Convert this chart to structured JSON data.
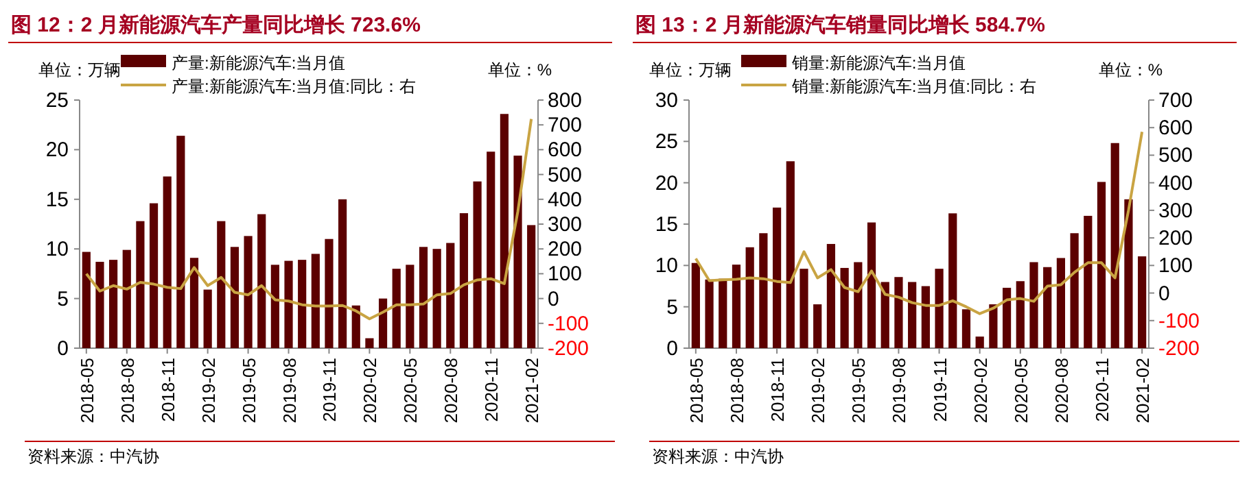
{
  "chart_data": [
    {
      "type": "bar",
      "title": "图 12：2 月新能源汽车产量同比增长 723.6%",
      "ylabel": "单位：万辆",
      "y2label": "单位：%",
      "legend": "top",
      "annotations": [
        "资料来源：中汽协"
      ],
      "categories": [
        "2018-05",
        null,
        null,
        "2018-08",
        null,
        null,
        "2018-11",
        null,
        null,
        "2019-02",
        null,
        null,
        "2019-05",
        null,
        null,
        "2019-08",
        null,
        null,
        "2019-11",
        null,
        null,
        "2020-02",
        null,
        null,
        "2020-05",
        null,
        null,
        "2020-08",
        null,
        null,
        "2020-11",
        null,
        null,
        "2021-02"
      ],
      "ylim": [
        0,
        25
      ],
      "yticks": [
        0,
        5,
        10,
        15,
        20,
        25
      ],
      "y2lim": [
        -200,
        800
      ],
      "y2ticks": [
        -200,
        -100,
        0,
        100,
        200,
        300,
        400,
        500,
        600,
        700,
        800
      ],
      "series": [
        {
          "name": "产量:新能源汽车:当月值",
          "color": "#5c0000",
          "values": [
            9.7,
            8.7,
            8.9,
            9.9,
            12.8,
            14.6,
            17.3,
            21.4,
            9.1,
            5.9,
            12.8,
            10.2,
            11.3,
            13.5,
            8.4,
            8.8,
            8.9,
            9.5,
            11.0,
            15.0,
            4.3,
            1.0,
            5.0,
            8.0,
            8.4,
            10.2,
            10.0,
            10.6,
            13.6,
            16.8,
            19.8,
            23.6,
            19.4,
            12.4
          ]
        },
        {
          "name": "产量:新能源汽车:当月值:同比：右",
          "type": "line",
          "axis": "y2",
          "color": "#c9a443",
          "values": [
            100,
            30,
            52,
            38,
            65,
            58,
            45,
            40,
            125,
            52,
            85,
            25,
            15,
            52,
            -5,
            -10,
            -25,
            -30,
            -30,
            -28,
            -50,
            -82,
            -55,
            -25,
            -25,
            -22,
            15,
            20,
            55,
            75,
            80,
            60,
            350,
            723.6
          ]
        }
      ]
    },
    {
      "type": "bar",
      "title": "图 13：2 月新能源汽车销量同比增长 584.7%",
      "ylabel": "单位：万辆",
      "y2label": "单位：%",
      "legend": "top",
      "annotations": [
        "资料来源：中汽协"
      ],
      "categories": [
        "2018-05",
        null,
        null,
        "2018-08",
        null,
        null,
        "2018-11",
        null,
        null,
        "2019-02",
        null,
        null,
        "2019-05",
        null,
        null,
        "2019-08",
        null,
        null,
        "2019-11",
        null,
        null,
        "2020-02",
        null,
        null,
        "2020-05",
        null,
        null,
        "2020-08",
        null,
        null,
        "2020-11",
        null,
        null,
        "2021-02"
      ],
      "ylim": [
        0,
        30
      ],
      "yticks": [
        0,
        5,
        10,
        15,
        20,
        25,
        30
      ],
      "y2lim": [
        -200,
        700
      ],
      "y2ticks": [
        -200,
        -100,
        0,
        100,
        200,
        300,
        400,
        500,
        600,
        700
      ],
      "series": [
        {
          "name": "销量:新能源汽车:当月值",
          "color": "#5c0000",
          "values": [
            10.3,
            8.3,
            8.4,
            10.1,
            12.2,
            13.9,
            17.0,
            22.6,
            9.6,
            5.3,
            12.6,
            9.7,
            10.4,
            15.2,
            8.0,
            8.6,
            8.0,
            7.5,
            9.6,
            16.3,
            4.7,
            1.4,
            5.3,
            7.3,
            8.1,
            10.4,
            9.8,
            10.9,
            13.9,
            16.0,
            20.1,
            24.8,
            18.0,
            11.1
          ]
        },
        {
          "name": "销量:新能源汽车:当月值:同比：右",
          "type": "line",
          "axis": "y2",
          "color": "#c9a443",
          "values": [
            125,
            45,
            48,
            50,
            55,
            52,
            42,
            38,
            150,
            55,
            85,
            20,
            5,
            80,
            -5,
            -15,
            -35,
            -45,
            -45,
            -28,
            -50,
            -75,
            -55,
            -25,
            -20,
            -30,
            25,
            30,
            75,
            110,
            110,
            55,
            300,
            584.7
          ]
        }
      ]
    }
  ]
}
